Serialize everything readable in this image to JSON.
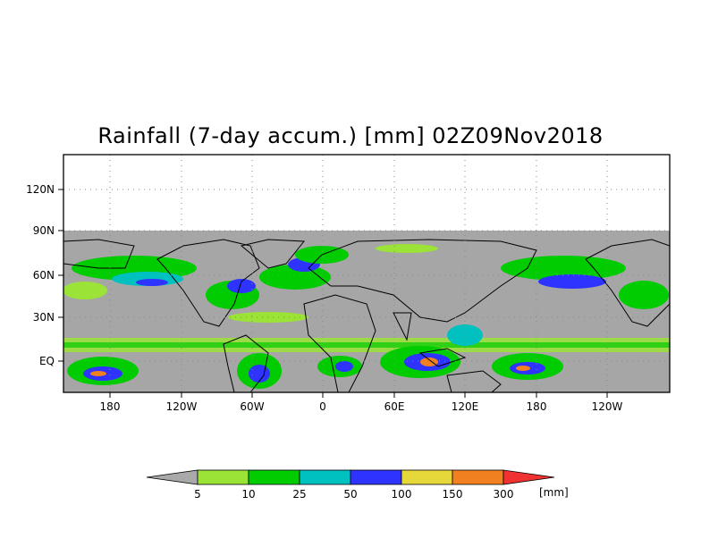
{
  "title": "Rainfall (7-day accum.) [mm] 02Z09Nov2018",
  "y_ticks": [
    "120N",
    "90N",
    "60N",
    "30N",
    "EQ"
  ],
  "x_ticks": [
    "180",
    "120W",
    "60W",
    "0",
    "60E",
    "120E",
    "180",
    "120W"
  ],
  "legend": {
    "thresholds": [
      "5",
      "10",
      "25",
      "50",
      "100",
      "150",
      "300"
    ],
    "unit": "[mm]",
    "colors": [
      "#a9a9a9",
      "#9be336",
      "#00cc00",
      "#00c0c0",
      "#2f33ff",
      "#e6d83a",
      "#f08020",
      "#f03232"
    ]
  },
  "colors": {
    "no_rain": "#a6a6a6",
    "frame": "#000000"
  }
}
